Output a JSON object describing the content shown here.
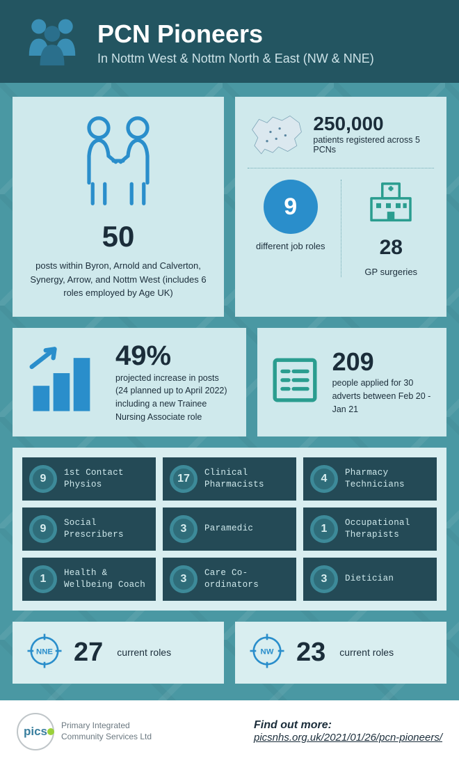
{
  "colors": {
    "header_bg": "#235561",
    "body_bg": "#4a98a3",
    "card_bg": "#cfe9ec",
    "card_pale": "#d9eef0",
    "dark_text": "#1b2d3a",
    "accent_blue": "#2a8ecb",
    "role_bg": "#244a56",
    "badge_bg": "#2f6d7a",
    "badge_ring": "#3d8a99",
    "teal_line": "#2a9d8f",
    "footer_bg": "#ffffff"
  },
  "header": {
    "title": "PCN Pioneers",
    "subtitle": "In Nottm West & Nottm North & East (NW & NNE)"
  },
  "posts_card": {
    "number": "50",
    "description": "posts within Byron, Arnold and Calverton, Synergy, Arrow, and Nottm West (includes 6 roles employed by Age UK)"
  },
  "patients": {
    "number": "250,000",
    "label": "patients registered across 5 PCNs"
  },
  "job_roles": {
    "number": "9",
    "label": "different job roles"
  },
  "surgeries": {
    "number": "28",
    "label": "GP surgeries"
  },
  "growth": {
    "percent": "49%",
    "description": "projected increase in posts (24 planned up to April 2022) including a new Trainee Nursing Associate role"
  },
  "applied": {
    "number": "209",
    "description": "people applied for 30 adverts between Feb 20 - Jan 21"
  },
  "roles": [
    {
      "count": "9",
      "label": "1st Contact Physios"
    },
    {
      "count": "17",
      "label": "Clinical Pharmacists"
    },
    {
      "count": "4",
      "label": "Pharmacy Technicians"
    },
    {
      "count": "9",
      "label": "Social Prescribers"
    },
    {
      "count": "3",
      "label": "Paramedic"
    },
    {
      "count": "1",
      "label": "Occupational Therapists"
    },
    {
      "count": "1",
      "label": "Health & Wellbeing Coach"
    },
    {
      "count": "3",
      "label": "Care Co-ordinators"
    },
    {
      "count": "3",
      "label": "Dietician"
    }
  ],
  "current_roles": [
    {
      "code": "NNE",
      "number": "27",
      "label": "current roles"
    },
    {
      "code": "NW",
      "number": "23",
      "label": "current roles"
    }
  ],
  "footer": {
    "logo_text": "pics",
    "company_line1": "Primary Integrated",
    "company_line2": "Community Services Ltd",
    "find_out": "Find out more:",
    "link": "picsnhs.org.uk/2021/01/26/pcn-pioneers/"
  }
}
